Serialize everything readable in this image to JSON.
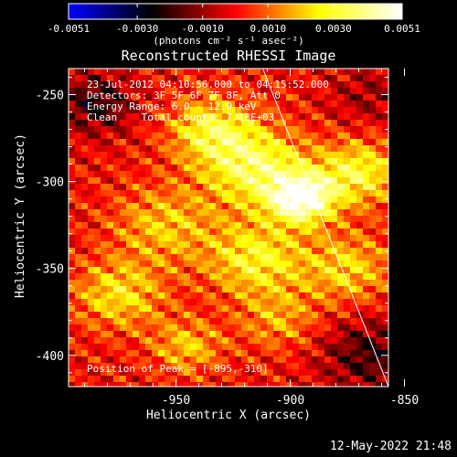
{
  "chart_data": {
    "type": "heatmap",
    "title": "Reconstructed RHESSI Image",
    "xlabel": "Heliocentric X (arcsec)",
    "ylabel": "Heliocentric Y (arcsec)",
    "xlim": [
      -997,
      -857
    ],
    "ylim": [
      -418,
      -235
    ],
    "x_ticks": [
      -950,
      -900,
      -850
    ],
    "x_tick_labels": [
      "-950",
      "-900",
      "-850"
    ],
    "y_ticks": [
      -400,
      -350,
      -300,
      -250
    ],
    "y_tick_labels": [
      "-400",
      "-350",
      "-300",
      "-250"
    ],
    "colorbar": {
      "min": -0.0051,
      "max": 0.0051,
      "ticks": [
        -0.0051,
        -0.003,
        -0.001,
        0.001,
        0.003,
        0.0051
      ],
      "tick_labels": [
        "-0.0051",
        "-0.0030",
        "-0.0010",
        "0.0010",
        "0.0030",
        "0.0051"
      ],
      "unit_label": "(photons cm⁻² s⁻¹ asec⁻²)",
      "colormap": [
        "#0000ff",
        "#000000",
        "#ff0000",
        "#ffff00",
        "#ffffff"
      ]
    },
    "info_lines": [
      "23-Jul-2012 04:10:56.000 to 04:15:52.000",
      "Detectors: 3F 5F 6F 7F 8F, Att 0",
      "Energy Range: 6.0 - 12.0 keV",
      "Clean    Total counts: 7.18E+03"
    ],
    "peak_annotation": "Position of Peak = [-895,-310]",
    "peak": {
      "x": -895,
      "y": -310,
      "value": 0.0051
    },
    "limb_line": [
      [
        -912,
        -235
      ],
      [
        -857,
        -418
      ]
    ],
    "sources": [
      {
        "x": -895,
        "y": -310,
        "sigma": 10,
        "value": 0.005
      },
      {
        "x": -915,
        "y": -292,
        "sigma": 16,
        "value": 0.0034
      },
      {
        "x": -935,
        "y": -270,
        "sigma": 13,
        "value": 0.0028
      },
      {
        "x": -870,
        "y": -295,
        "sigma": 13,
        "value": 0.003
      },
      {
        "x": -915,
        "y": -345,
        "sigma": 15,
        "value": 0.0028
      },
      {
        "x": -955,
        "y": -325,
        "sigma": 16,
        "value": 0.002
      },
      {
        "x": -975,
        "y": -365,
        "sigma": 14,
        "value": 0.0024
      },
      {
        "x": -945,
        "y": -395,
        "sigma": 11,
        "value": 0.002
      },
      {
        "x": -875,
        "y": -350,
        "sigma": 14,
        "value": 0.0022
      },
      {
        "x": -905,
        "y": -380,
        "sigma": 12,
        "value": 0.0016
      },
      {
        "x": -985,
        "y": -255,
        "sigma": 12,
        "value": -0.0022
      },
      {
        "x": -865,
        "y": -400,
        "sigma": 15,
        "value": -0.002
      },
      {
        "x": -865,
        "y": -250,
        "sigma": 13,
        "value": -0.001
      }
    ],
    "footer_date": "12-May-2022 21:48"
  }
}
